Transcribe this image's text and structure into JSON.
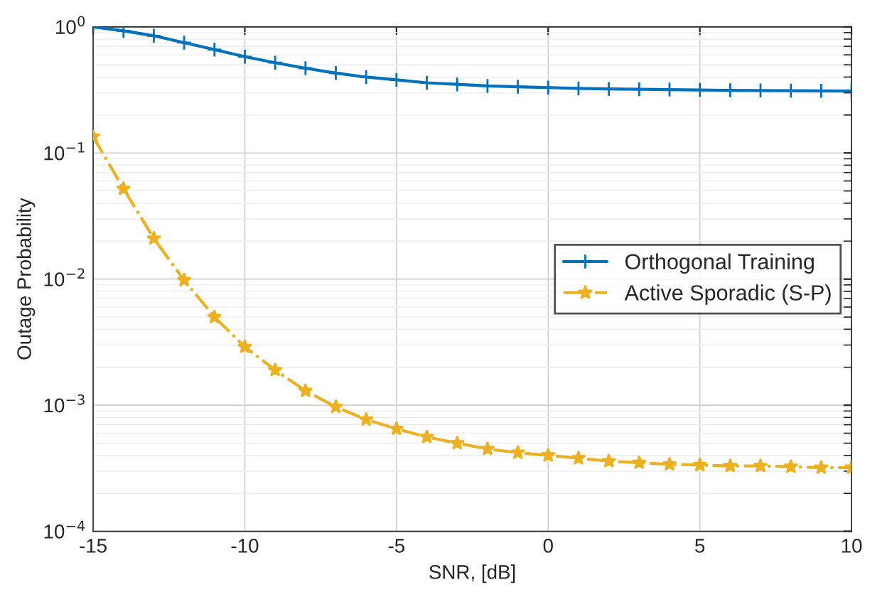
{
  "chart_data": {
    "type": "line",
    "xlabel": "SNR, [dB]",
    "ylabel": "Outage Probability",
    "log": "y",
    "grid": true,
    "legend": "right",
    "x": [
      -15,
      -14,
      -13,
      -12,
      -11,
      -10,
      -9,
      -8,
      -7,
      -6,
      -5,
      -4,
      -3,
      -2,
      -1,
      0,
      1,
      2,
      3,
      4,
      5,
      6,
      7,
      8,
      9,
      10
    ],
    "series": [
      {
        "name": "Orthogonal Training",
        "color": "#0072bd",
        "marker": "cross",
        "line_style": "solid",
        "values": [
          1.0,
          0.93,
          0.85,
          0.75,
          0.66,
          0.58,
          0.52,
          0.47,
          0.43,
          0.4,
          0.38,
          0.36,
          0.35,
          0.34,
          0.335,
          0.33,
          0.325,
          0.322,
          0.32,
          0.318,
          0.316,
          0.314,
          0.313,
          0.312,
          0.311,
          0.31
        ]
      },
      {
        "name": "Active Sporadic (S-P)",
        "color": "#edb120",
        "marker": "star",
        "line_style": "dashed",
        "values": [
          0.135,
          0.052,
          0.021,
          0.0098,
          0.005,
          0.0029,
          0.0019,
          0.0013,
          0.00097,
          0.00077,
          0.00065,
          0.00056,
          0.0005,
          0.00045,
          0.00042,
          0.0004,
          0.00038,
          0.00036,
          0.00035,
          0.00034,
          0.000335,
          0.00033,
          0.00033,
          0.000325,
          0.00032,
          0.00032
        ]
      }
    ],
    "xlim": [
      -15,
      10
    ],
    "xticks": [
      -15,
      -10,
      -5,
      0,
      5,
      10
    ],
    "ylim": [
      0.0001,
      1
    ],
    "yticks": [
      {
        "value": 0.0001,
        "label": "10$^{−4}$"
      },
      {
        "value": 0.001,
        "label": "10$^{−3}$"
      },
      {
        "value": 0.01,
        "label": "10$^{−2}$"
      },
      {
        "value": 0.1,
        "label": "10$^{−1}$"
      },
      {
        "value": 1,
        "label": "10$^{0}$"
      }
    ]
  }
}
